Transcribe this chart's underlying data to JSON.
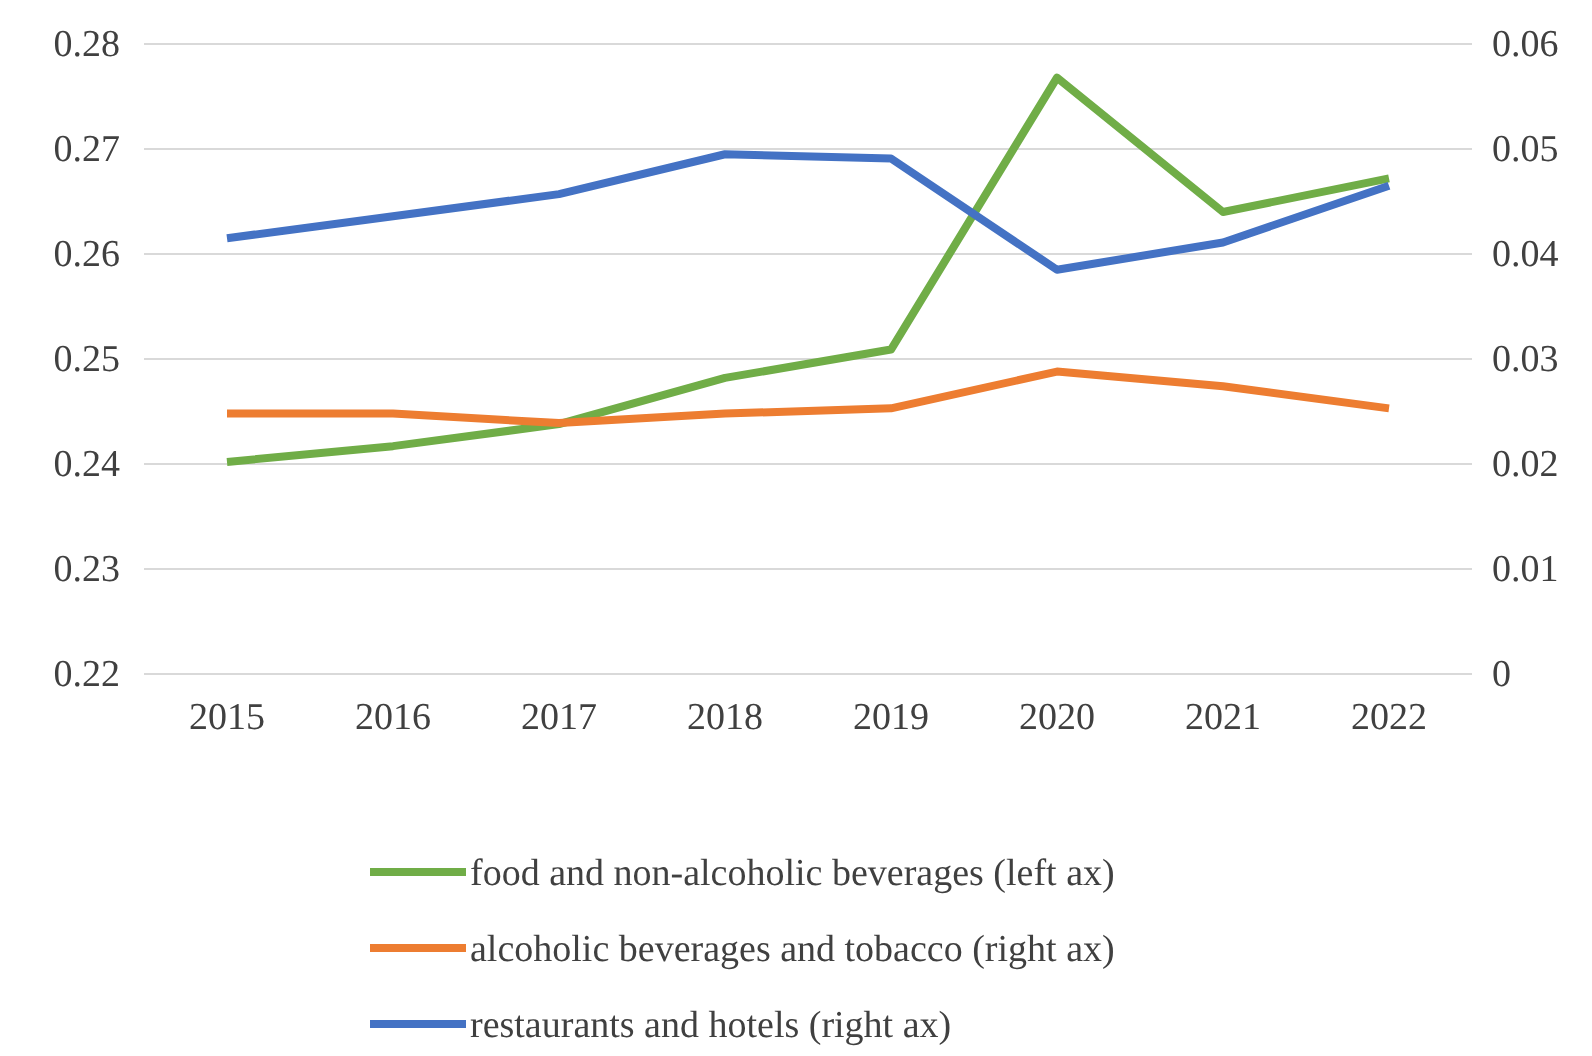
{
  "chart_data": {
    "type": "line",
    "categories": [
      "2015",
      "2016",
      "2017",
      "2018",
      "2019",
      "2020",
      "2021",
      "2022"
    ],
    "series": [
      {
        "name": "food and non-alcoholic beverages (left ax)",
        "color": "#70ad47",
        "values": [
          0.2402,
          0.2417,
          0.2438,
          0.2482,
          0.2509,
          0.2768,
          0.264,
          0.2672
        ]
      },
      {
        "name": "alcoholic beverages and tobacco (right ax)",
        "color": "#ed7d31",
        "axis": "y2",
        "values": [
          0.0248,
          0.0248,
          0.0239,
          0.0248,
          0.0253,
          0.0288,
          0.0274,
          0.0253
        ]
      },
      {
        "name": "restaurants and hotels (right ax)",
        "color": "#4472c4",
        "axis": "y2",
        "values": [
          0.0415,
          0.0436,
          0.0457,
          0.0495,
          0.0491,
          0.0385,
          0.0411,
          0.0465
        ]
      }
    ],
    "ylim": [
      0.22,
      0.28
    ],
    "yticks": [
      0.22,
      0.23,
      0.24,
      0.25,
      0.26,
      0.27,
      0.28
    ],
    "y2lim": [
      0,
      0.06
    ],
    "y2ticks": [
      0,
      0.01,
      0.02,
      0.03,
      0.04,
      0.05,
      0.06
    ],
    "grid": "y",
    "legend": "bottom",
    "marker": "none",
    "line_style": "solid"
  }
}
